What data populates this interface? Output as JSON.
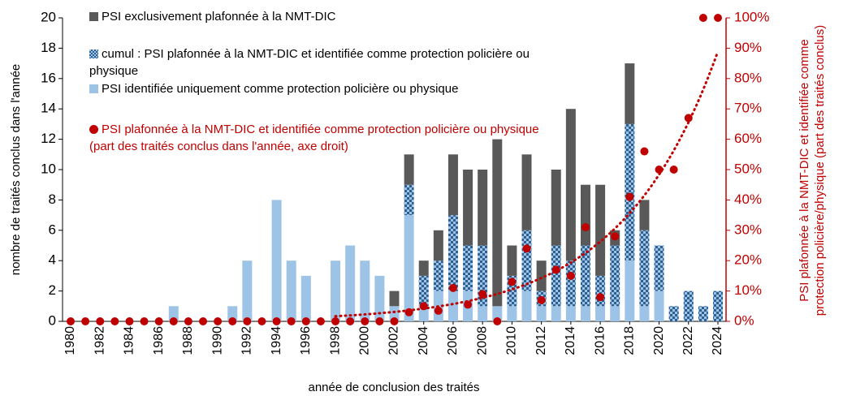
{
  "chart_data": {
    "type": "stacked-bar-dots",
    "ylabel": "nombre de traités conclus dans l'année",
    "y2label": "PSI plafonnée à la NMT-DIC et identifiée comme protection policière/physique (part des traités conclus)",
    "xlabel": "année de conclusion des traités",
    "x": [
      1980,
      1981,
      1982,
      1983,
      1984,
      1985,
      1986,
      1987,
      1988,
      1989,
      1990,
      1991,
      1992,
      1993,
      1994,
      1995,
      1996,
      1997,
      1998,
      1999,
      2000,
      2001,
      2002,
      2003,
      2004,
      2005,
      2006,
      2007,
      2008,
      2009,
      2010,
      2011,
      2012,
      2013,
      2014,
      2015,
      2016,
      2017,
      2018,
      2019,
      2020,
      2021,
      2022,
      2023,
      2024
    ],
    "xlim": [
      1980,
      2024
    ],
    "xticks": [
      1980,
      1982,
      1984,
      1986,
      1988,
      1990,
      1992,
      1994,
      1996,
      1998,
      2000,
      2002,
      2004,
      2006,
      2008,
      2010,
      2012,
      2014,
      2016,
      2018,
      2020,
      2022,
      2024
    ],
    "ylim": [
      0,
      20
    ],
    "yticks": [
      0,
      2,
      4,
      6,
      8,
      10,
      12,
      14,
      16,
      18,
      20
    ],
    "y2lim": [
      0,
      100
    ],
    "y2ticks": [
      {
        "value": 0,
        "label": "0%"
      },
      {
        "value": 10,
        "label": "10%"
      },
      {
        "value": 20,
        "label": "20%"
      },
      {
        "value": 30,
        "label": "30%"
      },
      {
        "value": 40,
        "label": "40%"
      },
      {
        "value": 50,
        "label": "50%"
      },
      {
        "value": 60,
        "label": "60%"
      },
      {
        "value": 70,
        "label": "70%"
      },
      {
        "value": 80,
        "label": "80%"
      },
      {
        "value": 90,
        "label": "90%"
      },
      {
        "value": 100,
        "label": "100%"
      }
    ],
    "series": [
      {
        "name": "PSI identifiée uniquement comme protection policière ou physique",
        "color": "#9dc3e6",
        "legend_order": 2,
        "values": [
          0,
          0,
          0,
          0,
          0,
          0,
          0,
          1,
          0,
          0,
          0,
          1,
          4,
          0,
          8,
          4,
          3,
          0,
          4,
          5,
          4,
          3,
          1,
          7,
          1,
          2,
          2,
          2,
          1,
          1,
          1,
          2,
          1,
          1,
          1,
          1,
          1,
          1,
          4,
          1,
          2,
          0,
          0,
          0,
          0
        ]
      },
      {
        "name": "cumul : PSI plafonnée à la NMT-DIC et identifiée comme protection policière ou physique",
        "color": "#2f5f8f",
        "hatch": true,
        "legend_order": 1,
        "values": [
          0,
          0,
          0,
          0,
          0,
          0,
          0,
          0,
          0,
          0,
          0,
          0,
          0,
          0,
          0,
          0,
          0,
          0,
          0,
          0,
          0,
          0,
          0,
          2,
          2,
          2,
          5,
          3,
          4,
          0,
          2,
          4,
          1,
          4,
          3,
          4,
          2,
          4,
          9,
          5,
          3,
          1,
          2,
          1,
          2
        ]
      },
      {
        "name": "PSI exclusivement plafonnée à la NMT-DIC",
        "color": "#595959",
        "legend_order": 0,
        "values": [
          0,
          0,
          0,
          0,
          0,
          0,
          0,
          0,
          0,
          0,
          0,
          0,
          0,
          0,
          0,
          0,
          0,
          0,
          0,
          0,
          0,
          0,
          1,
          2,
          1,
          2,
          4,
          5,
          5,
          11,
          2,
          5,
          2,
          5,
          10,
          4,
          6,
          1,
          4,
          2,
          0,
          0,
          0,
          0,
          0
        ]
      },
      {
        "name": "PSI plafonnée à la NMT-DIC et identifiée comme protection policière ou physique (part des traités conclus dans l'année, axe droit)",
        "color": "#c00000",
        "axis": "y2",
        "trendline": "exponential",
        "legend_order": 3,
        "values": [
          0,
          0,
          0,
          0,
          0,
          0,
          0,
          0,
          0,
          0,
          0,
          0,
          0,
          0,
          0,
          0,
          0,
          0,
          0,
          0,
          0,
          0,
          0,
          3,
          5,
          3.5,
          11,
          5.5,
          9,
          0,
          13,
          24,
          7,
          17,
          15,
          31,
          8,
          28,
          41,
          56,
          50,
          50,
          67,
          100,
          100
        ]
      }
    ]
  }
}
